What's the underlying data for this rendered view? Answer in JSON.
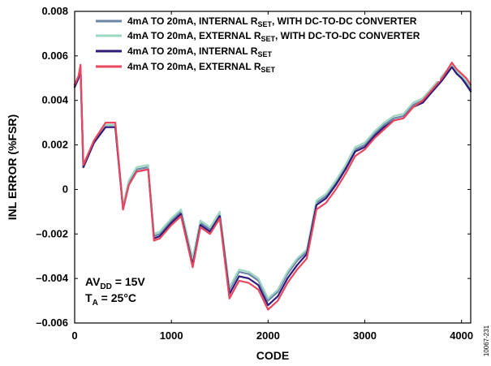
{
  "chart_data": {
    "type": "line",
    "xlabel": "CODE",
    "ylabel": "INL ERROR (%FSR)",
    "xlim": [
      0,
      4095
    ],
    "ylim": [
      -0.006,
      0.008
    ],
    "x_ticks": [
      "0",
      "1000",
      "2000",
      "3000",
      "4000"
    ],
    "y_ticks": [
      "–0.006",
      "–0.004",
      "–0.002",
      "0",
      "0.002",
      "0.004",
      "0.006",
      "0.008"
    ],
    "grid": false,
    "legend_position": "top",
    "x": [
      0,
      40,
      60,
      90,
      200,
      320,
      420,
      500,
      560,
      640,
      760,
      820,
      880,
      1000,
      1100,
      1220,
      1300,
      1400,
      1500,
      1600,
      1700,
      1800,
      1900,
      2000,
      2100,
      2200,
      2300,
      2400,
      2500,
      2600,
      2700,
      2800,
      2900,
      3000,
      3100,
      3200,
      3300,
      3400,
      3500,
      3600,
      3700,
      3800,
      3900,
      3950,
      4000,
      4050,
      4095
    ],
    "series": [
      {
        "name": "4mA TO 20mA, INTERNAL RSET, WITH DC-TO-DC CONVERTER",
        "color": "#6b86a6",
        "values": [
          0.0046,
          0.005,
          0.0054,
          0.001,
          0.0021,
          0.0028,
          0.0028,
          -0.0008,
          0.0003,
          0.0009,
          0.001,
          -0.0021,
          -0.002,
          -0.0014,
          -0.001,
          -0.0032,
          -0.0015,
          -0.0018,
          -0.0011,
          -0.0045,
          -0.0037,
          -0.0038,
          -0.0041,
          -0.005,
          -0.0046,
          -0.0038,
          -0.0032,
          -0.0028,
          -0.0006,
          -0.0003,
          0.0003,
          0.001,
          0.0018,
          0.002,
          0.0025,
          0.0029,
          0.0032,
          0.0033,
          0.0038,
          0.004,
          0.0045,
          0.005,
          0.0055,
          0.0052,
          0.005,
          0.0048,
          0.0045
        ]
      },
      {
        "name": "4mA TO 20mA, EXTERNAL RSET, WITH DC-TO-DC CONVERTER",
        "color": "#9dd6c2",
        "values": [
          0.0047,
          0.005,
          0.0055,
          0.0011,
          0.0022,
          0.0029,
          0.0029,
          -0.0007,
          0.0004,
          0.001,
          0.0011,
          -0.002,
          -0.0019,
          -0.0013,
          -0.0009,
          -0.0031,
          -0.0014,
          -0.0017,
          -0.001,
          -0.0044,
          -0.0036,
          -0.0037,
          -0.004,
          -0.0049,
          -0.0045,
          -0.0037,
          -0.0031,
          -0.0027,
          -0.0005,
          -0.0002,
          0.0004,
          0.0011,
          0.0019,
          0.0021,
          0.0026,
          0.003,
          0.0033,
          0.0034,
          0.0039,
          0.0041,
          0.0046,
          0.0051,
          0.0056,
          0.0053,
          0.0051,
          0.0049,
          0.0046
        ]
      },
      {
        "name": "4mA TO 20mA, INTERNAL RSET",
        "color": "#2e1a7a",
        "values": [
          0.0046,
          0.005,
          0.0055,
          0.001,
          0.0021,
          0.0028,
          0.0028,
          -0.0009,
          0.0002,
          0.0008,
          0.0009,
          -0.0022,
          -0.0021,
          -0.0015,
          -0.0011,
          -0.0034,
          -0.0016,
          -0.0019,
          -0.0012,
          -0.0047,
          -0.0039,
          -0.004,
          -0.0043,
          -0.0052,
          -0.0048,
          -0.004,
          -0.0034,
          -0.0029,
          -0.0007,
          -0.0004,
          0.0002,
          0.0009,
          0.0017,
          0.0019,
          0.0024,
          0.0028,
          0.0031,
          0.0032,
          0.0037,
          0.0039,
          0.0044,
          0.0049,
          0.0055,
          0.0052,
          0.005,
          0.0047,
          0.0044
        ]
      },
      {
        "name": "4mA TO 20mA, EXTERNAL RSET",
        "color": "#e8475f",
        "values": [
          0.0047,
          0.0051,
          0.0056,
          0.0011,
          0.0022,
          0.003,
          0.003,
          -0.0009,
          0.0002,
          0.0008,
          0.0009,
          -0.0023,
          -0.0022,
          -0.0016,
          -0.0012,
          -0.0035,
          -0.0017,
          -0.002,
          -0.0013,
          -0.0049,
          -0.0041,
          -0.0042,
          -0.0045,
          -0.0054,
          -0.005,
          -0.0042,
          -0.0036,
          -0.0031,
          -0.0009,
          -0.0006,
          0.0,
          0.0007,
          0.0015,
          0.0018,
          0.0023,
          0.0027,
          0.0031,
          0.0032,
          0.0037,
          0.004,
          0.0045,
          0.005,
          0.0057,
          0.0054,
          0.0052,
          0.005,
          0.0047
        ]
      }
    ],
    "legend": [
      {
        "prefix": "4mA TO 20mA, INTERNAL R",
        "sub": "SET",
        "suffix": ", WITH DC-TO-DC CONVERTER"
      },
      {
        "prefix": "4mA TO 20mA, EXTERNAL R",
        "sub": "SET",
        "suffix": ", WITH DC-TO-DC CONVERTER"
      },
      {
        "prefix": "4mA TO 20mA, INTERNAL R",
        "sub": "SET",
        "suffix": ""
      },
      {
        "prefix": "4mA TO 20mA, EXTERNAL R",
        "sub": "SET",
        "suffix": ""
      }
    ],
    "annotations": {
      "line1_main": "AV",
      "line1_sub": "DD",
      "line1_rest": " = 15V",
      "line2_main": "T",
      "line2_sub": "A",
      "line2_rest": " = 25°C"
    },
    "figure_id": "10067-231"
  }
}
